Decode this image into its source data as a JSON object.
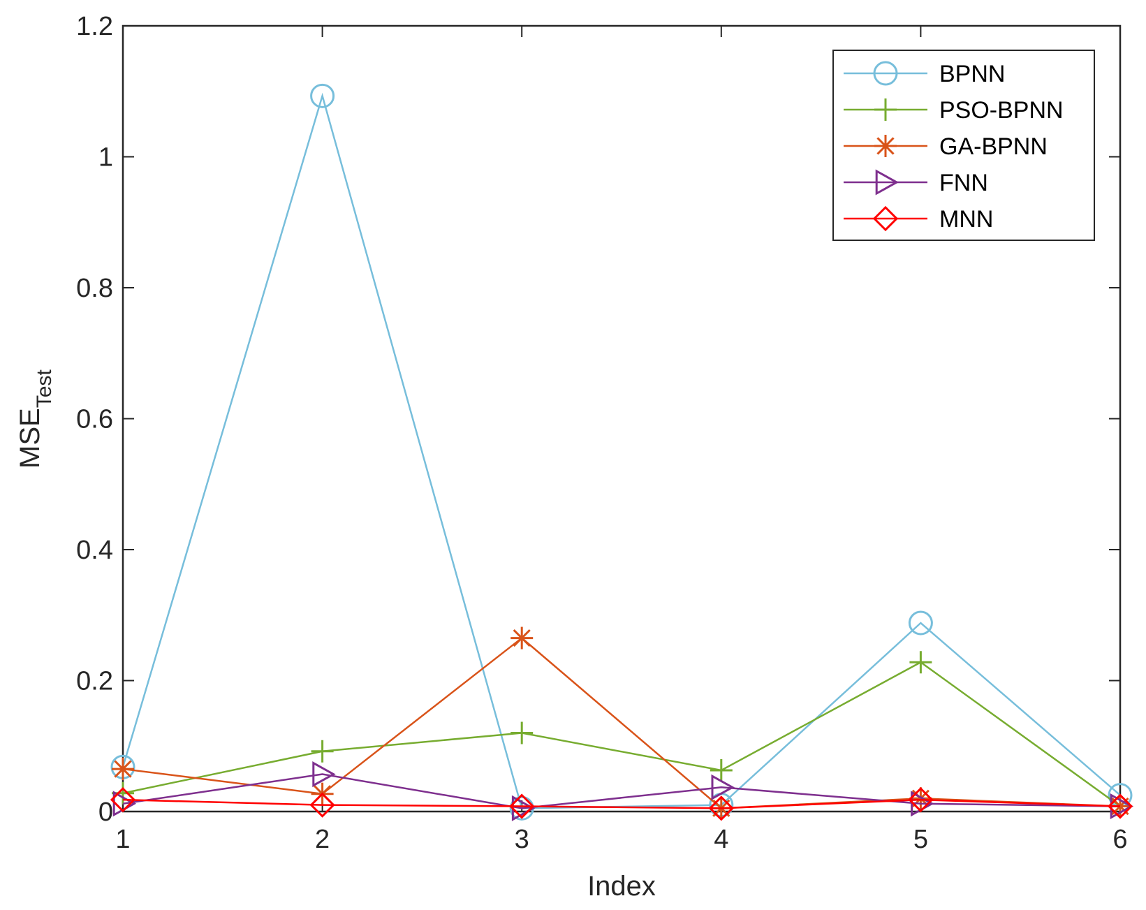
{
  "chart_data": {
    "type": "line",
    "title": "",
    "xlabel": "Index",
    "ylabel": {
      "base": "MSE",
      "subscript": "Test"
    },
    "xlim": [
      1,
      6
    ],
    "ylim": [
      0,
      1.2
    ],
    "xticks": [
      1,
      2,
      3,
      4,
      5,
      6
    ],
    "yticks": [
      0,
      0.2,
      0.4,
      0.6,
      0.8,
      1,
      1.2
    ],
    "ytick_labels": [
      "0",
      "0.2",
      "0.4",
      "0.6",
      "0.8",
      "1",
      "1.2"
    ],
    "grid": false,
    "legend_position": "top-right",
    "x": [
      1,
      2,
      3,
      4,
      5,
      6
    ],
    "series": [
      {
        "name": "BPNN",
        "marker": "circle",
        "color": "#77BEDB",
        "values": [
          0.068,
          1.093,
          0.005,
          0.01,
          0.288,
          0.025
        ]
      },
      {
        "name": "PSO-BPNN",
        "marker": "plus",
        "color": "#77AC30",
        "values": [
          0.028,
          0.092,
          0.12,
          0.063,
          0.228,
          0.008
        ]
      },
      {
        "name": "GA-BPNN",
        "marker": "asterisk",
        "color": "#D95319",
        "values": [
          0.065,
          0.027,
          0.265,
          0.005,
          0.02,
          0.008
        ]
      },
      {
        "name": "FNN",
        "marker": "triangle-right",
        "color": "#7E2F8E",
        "values": [
          0.012,
          0.057,
          0.005,
          0.037,
          0.012,
          0.008
        ]
      },
      {
        "name": "MNN",
        "marker": "diamond",
        "color": "#FF0000",
        "values": [
          0.018,
          0.01,
          0.008,
          0.005,
          0.018,
          0.008
        ]
      }
    ]
  }
}
